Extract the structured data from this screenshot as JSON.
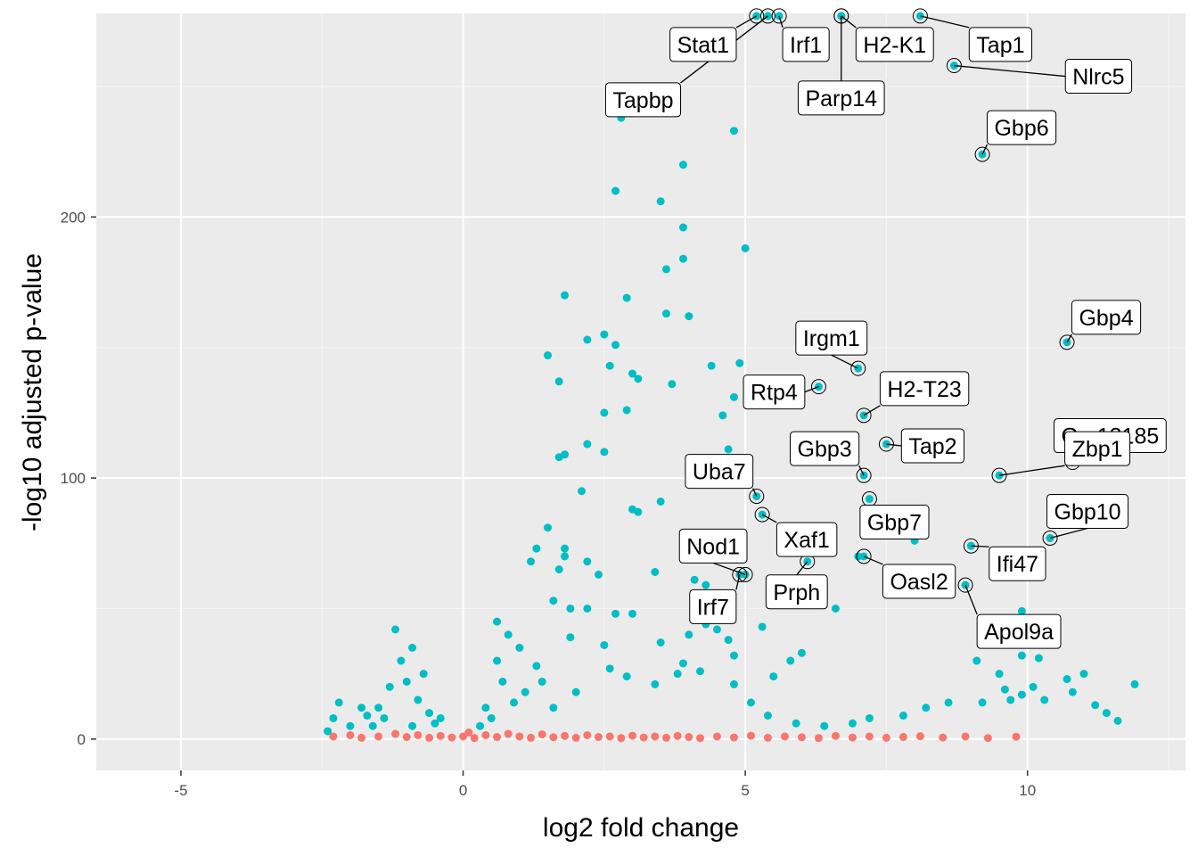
{
  "chart_data": {
    "type": "scatter",
    "title": "",
    "xlabel": "log2 fold change",
    "ylabel": "-log10 adjusted p-value",
    "xlim": [
      -6.5,
      12.8
    ],
    "ylim": [
      -12,
      278
    ],
    "x_ticks": [
      -5,
      0,
      5,
      10
    ],
    "x_tick_labels": [
      "-5",
      "0",
      "5",
      "10"
    ],
    "y_ticks": [
      0,
      100,
      200
    ],
    "y_tick_labels": [
      "0",
      "100",
      "200"
    ],
    "grid": true,
    "legend": "none",
    "colors": {
      "panel": "#ebebeb",
      "grid_major": "#ffffff",
      "grid_minor": "#f5f5f5",
      "significant": "#00bfc4",
      "not_significant": "#f8766d",
      "label_box": "#ffffff",
      "label_border": "#000000"
    },
    "series": [
      {
        "values": [
          [
            2.8,
            238
          ],
          [
            4.8,
            233
          ],
          [
            3.9,
            220
          ],
          [
            2.7,
            210
          ],
          [
            3.5,
            206
          ],
          [
            3.9,
            196
          ],
          [
            5.0,
            188
          ],
          [
            3.9,
            184
          ],
          [
            3.6,
            180
          ],
          [
            2.9,
            169
          ],
          [
            1.8,
            170
          ],
          [
            3.6,
            163
          ],
          [
            4.0,
            162
          ],
          [
            2.5,
            155
          ],
          [
            2.2,
            153
          ],
          [
            2.7,
            151
          ],
          [
            1.5,
            147
          ],
          [
            4.4,
            143
          ],
          [
            4.9,
            144
          ],
          [
            2.6,
            143
          ],
          [
            3.0,
            140
          ],
          [
            3.1,
            138
          ],
          [
            1.7,
            137
          ],
          [
            3.7,
            136
          ],
          [
            4.8,
            131
          ],
          [
            2.5,
            125
          ],
          [
            2.9,
            126
          ],
          [
            4.6,
            124
          ],
          [
            2.2,
            113
          ],
          [
            1.8,
            109
          ],
          [
            1.7,
            108
          ],
          [
            2.5,
            110
          ],
          [
            4.7,
            111
          ],
          [
            3.0,
            88
          ],
          [
            3.1,
            87
          ],
          [
            3.5,
            91
          ],
          [
            2.1,
            95
          ],
          [
            1.5,
            81
          ],
          [
            1.3,
            73
          ],
          [
            1.8,
            73
          ],
          [
            1.2,
            68
          ],
          [
            1.7,
            65
          ],
          [
            2.2,
            68
          ],
          [
            1.8,
            70
          ],
          [
            3.4,
            64
          ],
          [
            4.3,
            59
          ],
          [
            4.1,
            61
          ],
          [
            2.4,
            63
          ],
          [
            1.6,
            53
          ],
          [
            1.9,
            50
          ],
          [
            2.2,
            50
          ],
          [
            2.7,
            48
          ],
          [
            3.0,
            48
          ],
          [
            4.6,
            47
          ],
          [
            4.3,
            44
          ],
          [
            4.0,
            40
          ],
          [
            5.3,
            43
          ],
          [
            4.7,
            38
          ],
          [
            2.5,
            36
          ],
          [
            3.5,
            37
          ],
          [
            1.9,
            39
          ],
          [
            4.8,
            32
          ],
          [
            6.0,
            33
          ],
          [
            5.8,
            30
          ],
          [
            6.6,
            50
          ],
          [
            9.1,
            30
          ],
          [
            9.5,
            25
          ],
          [
            9.9,
            32
          ],
          [
            10.2,
            31
          ],
          [
            10.7,
            23
          ],
          [
            11.0,
            25
          ],
          [
            11.9,
            21
          ],
          [
            10.1,
            20
          ],
          [
            9.2,
            14
          ],
          [
            9.6,
            19
          ],
          [
            10.8,
            18
          ],
          [
            11.2,
            13
          ],
          [
            9.9,
            17
          ],
          [
            10.3,
            15
          ],
          [
            11.4,
            10
          ],
          [
            11.6,
            7
          ],
          [
            9.7,
            15
          ],
          [
            8.6,
            14
          ],
          [
            8.2,
            12
          ],
          [
            7.8,
            9
          ],
          [
            7.2,
            8
          ],
          [
            6.9,
            6
          ],
          [
            6.4,
            5
          ],
          [
            5.9,
            6
          ],
          [
            5.4,
            9
          ],
          [
            5.1,
            14
          ],
          [
            4.8,
            21
          ],
          [
            3.8,
            25
          ],
          [
            3.4,
            21
          ],
          [
            2.9,
            24
          ],
          [
            2.6,
            27
          ],
          [
            0.5,
            8
          ],
          [
            0.9,
            14
          ],
          [
            0.7,
            22
          ],
          [
            1.1,
            18
          ],
          [
            0.6,
            30
          ],
          [
            1.0,
            35
          ],
          [
            1.3,
            28
          ],
          [
            0.4,
            12
          ],
          [
            0.8,
            40
          ],
          [
            1.4,
            22
          ],
          [
            0.3,
            5
          ],
          [
            1.6,
            12
          ],
          [
            2.0,
            18
          ],
          [
            0.6,
            45
          ],
          [
            -0.6,
            10
          ],
          [
            -0.8,
            15
          ],
          [
            -1.0,
            22
          ],
          [
            -1.1,
            30
          ],
          [
            -1.2,
            42
          ],
          [
            -0.9,
            35
          ],
          [
            -0.7,
            25
          ],
          [
            -1.3,
            20
          ],
          [
            -0.5,
            6
          ],
          [
            -1.5,
            12
          ],
          [
            -2.2,
            14
          ],
          [
            -2.3,
            8
          ],
          [
            -1.8,
            12
          ],
          [
            -2.0,
            5
          ],
          [
            -1.6,
            5
          ],
          [
            -0.4,
            8
          ],
          [
            -1.4,
            8
          ],
          [
            -0.9,
            5
          ],
          [
            -1.7,
            9
          ],
          [
            -2.4,
            3
          ],
          [
            9.0,
            74
          ],
          [
            8.0,
            76
          ],
          [
            7.0,
            70
          ],
          [
            10.4,
            77
          ],
          [
            8.9,
            59
          ],
          [
            9.9,
            49
          ],
          [
            4.5,
            42
          ],
          [
            3.9,
            29
          ],
          [
            4.2,
            26
          ],
          [
            5.5,
            24
          ]
        ]
      },
      {
        "values": [
          [
            -2.3,
            1
          ],
          [
            -2.0,
            1.5
          ],
          [
            -1.8,
            0.5
          ],
          [
            -1.5,
            1
          ],
          [
            -1.2,
            2
          ],
          [
            -1.0,
            0.8
          ],
          [
            -0.8,
            1.5
          ],
          [
            -0.6,
            0.5
          ],
          [
            -0.4,
            1.2
          ],
          [
            -0.2,
            0.6
          ],
          [
            0.0,
            1
          ],
          [
            0.2,
            0.4
          ],
          [
            0.4,
            1.5
          ],
          [
            0.6,
            0.8
          ],
          [
            0.8,
            2
          ],
          [
            1.0,
            1
          ],
          [
            1.2,
            0.5
          ],
          [
            1.4,
            1.8
          ],
          [
            1.6,
            0.7
          ],
          [
            1.8,
            1.2
          ],
          [
            2.0,
            0.5
          ],
          [
            2.2,
            1.5
          ],
          [
            2.4,
            0.8
          ],
          [
            2.6,
            1
          ],
          [
            2.8,
            0.4
          ],
          [
            3.0,
            1.3
          ],
          [
            3.2,
            0.6
          ],
          [
            3.4,
            1
          ],
          [
            3.6,
            0.5
          ],
          [
            3.8,
            1.2
          ],
          [
            4.0,
            0.8
          ],
          [
            4.2,
            0.4
          ],
          [
            4.5,
            1
          ],
          [
            4.8,
            0.6
          ],
          [
            5.1,
            1.3
          ],
          [
            5.4,
            0.5
          ],
          [
            5.7,
            1
          ],
          [
            6.0,
            0.7
          ],
          [
            6.3,
            0.4
          ],
          [
            6.6,
            1.2
          ],
          [
            6.9,
            0.6
          ],
          [
            7.2,
            1
          ],
          [
            7.5,
            0.5
          ],
          [
            7.8,
            0.8
          ],
          [
            8.1,
            1.1
          ],
          [
            8.5,
            0.6
          ],
          [
            8.9,
            1
          ],
          [
            9.3,
            0.4
          ],
          [
            9.8,
            0.9
          ],
          [
            0.1,
            2.5
          ]
        ]
      }
    ],
    "labeled_genes": [
      {
        "name": "Stat1",
        "x": 5.2,
        "y": 277
      },
      {
        "name": "Irf1",
        "x": 5.6,
        "y": 277
      },
      {
        "name": "H2-K1",
        "x": 6.7,
        "y": 277
      },
      {
        "name": "Tap1",
        "x": 8.1,
        "y": 277
      },
      {
        "name": "Parp14",
        "x": 6.7,
        "y": 277
      },
      {
        "name": "Tapbp",
        "x": 5.4,
        "y": 277
      },
      {
        "name": "Nlrc5",
        "x": 8.7,
        "y": 258
      },
      {
        "name": "Gbp6",
        "x": 9.2,
        "y": 224
      },
      {
        "name": "Gbp4",
        "x": 10.7,
        "y": 152
      },
      {
        "name": "Irgm1",
        "x": 7.0,
        "y": 142
      },
      {
        "name": "Rtp4",
        "x": 6.3,
        "y": 135
      },
      {
        "name": "H2-T23",
        "x": 7.1,
        "y": 124
      },
      {
        "name": "Tap2",
        "x": 7.5,
        "y": 113
      },
      {
        "name": "Gbp3",
        "x": 7.1,
        "y": 101
      },
      {
        "name": "Gm12185",
        "x": 10.8,
        "y": 106
      },
      {
        "name": "Uba7",
        "x": 5.2,
        "y": 93
      },
      {
        "name": "Xaf1",
        "x": 5.3,
        "y": 86
      },
      {
        "name": "Gbp7",
        "x": 7.2,
        "y": 92
      },
      {
        "name": "Zbp1",
        "x": 9.5,
        "y": 101
      },
      {
        "name": "Gbp10",
        "x": 10.4,
        "y": 77
      },
      {
        "name": "Nod1",
        "x": 5.0,
        "y": 63
      },
      {
        "name": "Ifi47",
        "x": 9.0,
        "y": 74
      },
      {
        "name": "Prph",
        "x": 6.1,
        "y": 68
      },
      {
        "name": "Oasl2",
        "x": 7.1,
        "y": 70
      },
      {
        "name": "Irf7",
        "x": 4.9,
        "y": 63
      },
      {
        "name": "Apol9a",
        "x": 8.9,
        "y": 59
      }
    ]
  }
}
